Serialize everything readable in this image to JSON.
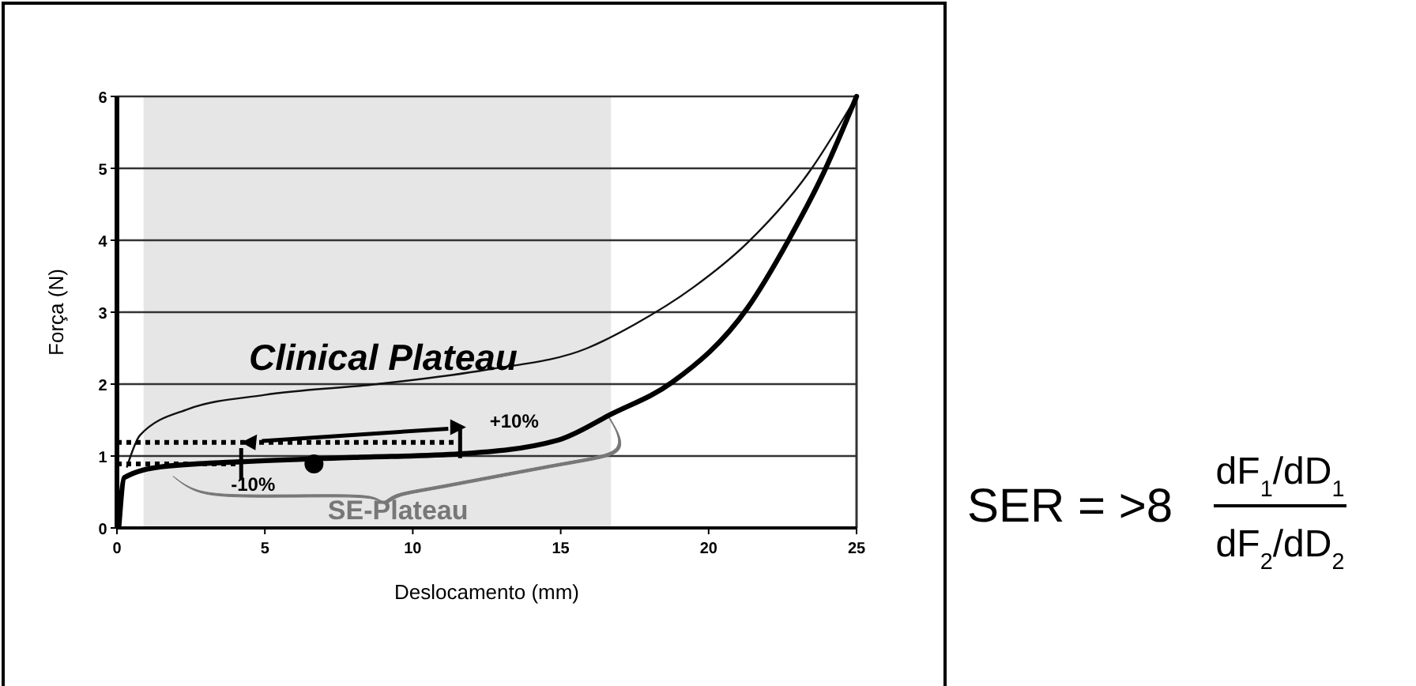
{
  "chart_data": {
    "type": "line",
    "xlabel": "Deslocamento (mm)",
    "ylabel": "Força (N)",
    "xlim": [
      0,
      25
    ],
    "ylim": [
      0,
      6
    ],
    "xticks": [
      0,
      5,
      10,
      15,
      20,
      25
    ],
    "yticks": [
      0,
      1,
      2,
      3,
      4,
      5,
      6
    ],
    "grid": "y",
    "bands": [
      {
        "axis": "x",
        "from": 0.9,
        "to": 16.7,
        "color": "#e6e6e6"
      }
    ],
    "series": [
      {
        "color": "#111111",
        "x": [
          0.34,
          0.78,
          2.39,
          5,
          8.8,
          12.5,
          15.9,
          17.5,
          19.5,
          21.3,
          23.4,
          25
        ],
        "values": [
          0.85,
          1.29,
          1.65,
          1.85,
          2.0,
          2.2,
          2.5,
          2.83,
          3.35,
          3.96,
          4.95,
          6
        ]
      },
      {
        "color": "#000000",
        "x": [
          0.07,
          0.25,
          1.5,
          4.2,
          8,
          11.6,
          14.9,
          16.7,
          18.75,
          21.3,
          22.7,
          23.9,
          25
        ],
        "values": [
          0.04,
          0.7,
          0.85,
          0.92,
          0.98,
          1.03,
          1.22,
          1.58,
          2.02,
          3.05,
          4.0,
          4.95,
          6
        ]
      },
      {
        "color": "#000000",
        "line_style": "dotted",
        "x": [
          0,
          11.6
        ],
        "values": [
          1.19,
          1.19
        ]
      },
      {
        "color": "#000000",
        "line_style": "dotted",
        "x": [
          0,
          4.2
        ],
        "values": [
          0.89,
          0.89
        ]
      },
      {
        "type": "scatter",
        "marker": "circle",
        "color": "#000000",
        "x": [
          6.66
        ],
        "values": [
          0.89
        ]
      }
    ],
    "annotations": [
      "Clinical Plateau",
      "+10%",
      "-10%",
      "SE-Plateau",
      "SER = >8",
      "dF$_{1}$/dD$_{1}$",
      "dF$_{2}$/dD$_{2}$"
    ]
  }
}
